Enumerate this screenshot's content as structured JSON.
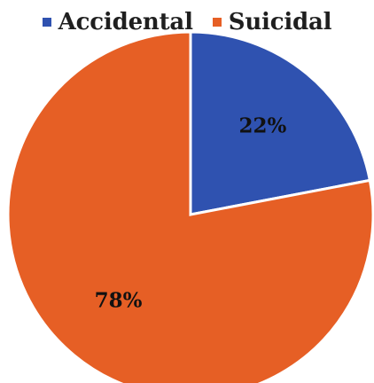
{
  "chart_data": {
    "type": "pie",
    "title": "",
    "legend_position": "top",
    "slices": [
      {
        "label": "Accidental",
        "value": 22,
        "display": "22%",
        "color": "#2f52b0"
      },
      {
        "label": "Suicidal",
        "value": 78,
        "display": "78%",
        "color": "#e65f25"
      }
    ]
  }
}
